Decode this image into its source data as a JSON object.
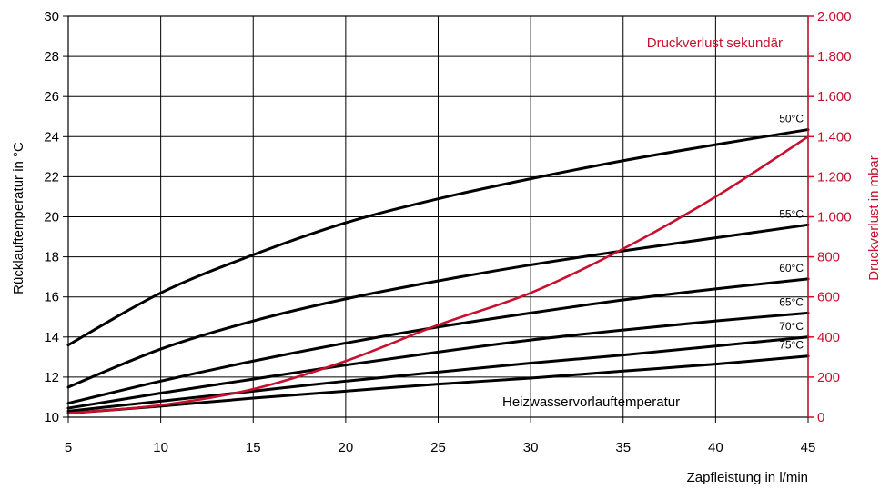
{
  "chart_data": {
    "type": "line",
    "xlabel": "Zapfleistung in l/min",
    "ylabel": "Rücklauftemperatur in °C",
    "y2label": "Druckverlust in mbar",
    "xlim": [
      5,
      45
    ],
    "ylim": [
      10,
      30
    ],
    "y2lim": [
      0,
      2000
    ],
    "grid": true,
    "x_ticks": [
      5,
      10,
      15,
      20,
      25,
      30,
      35,
      40,
      45
    ],
    "x_tick_labels": [
      "5",
      "10",
      "15",
      "20",
      "25",
      "30",
      "35",
      "40",
      "45"
    ],
    "y_ticks": [
      10,
      12,
      14,
      16,
      18,
      20,
      22,
      24,
      26,
      28,
      30
    ],
    "y_tick_labels": [
      "10",
      "12",
      "14",
      "16",
      "18",
      "20",
      "22",
      "24",
      "26",
      "28",
      "30"
    ],
    "y2_ticks": [
      0,
      200,
      400,
      600,
      800,
      1000,
      1200,
      1400,
      1600,
      1800,
      2000
    ],
    "y2_tick_labels": [
      "0",
      "200",
      "400",
      "600",
      "800",
      "1.000",
      "1.200",
      "1.400",
      "1.600",
      "1.800",
      "2.000"
    ],
    "x": [
      5,
      10,
      15,
      20,
      25,
      30,
      35,
      40,
      45
    ],
    "series": [
      {
        "name": "50°C",
        "axis": "left",
        "color": "#000000",
        "values": [
          13.6,
          16.2,
          18.1,
          19.7,
          20.9,
          21.9,
          22.8,
          23.6,
          24.35
        ]
      },
      {
        "name": "55°C",
        "axis": "left",
        "color": "#000000",
        "values": [
          11.5,
          13.4,
          14.8,
          15.9,
          16.8,
          17.6,
          18.3,
          18.95,
          19.6
        ]
      },
      {
        "name": "60°C",
        "axis": "left",
        "color": "#000000",
        "values": [
          10.7,
          11.8,
          12.8,
          13.7,
          14.5,
          15.2,
          15.85,
          16.4,
          16.9
        ]
      },
      {
        "name": "65°C",
        "axis": "left",
        "color": "#000000",
        "values": [
          10.45,
          11.2,
          11.9,
          12.6,
          13.25,
          13.85,
          14.35,
          14.8,
          15.2
        ]
      },
      {
        "name": "70°C",
        "axis": "left",
        "color": "#000000",
        "values": [
          10.3,
          10.8,
          11.3,
          11.8,
          12.25,
          12.7,
          13.1,
          13.55,
          14.0
        ]
      },
      {
        "name": "75°C",
        "axis": "left",
        "color": "#000000",
        "values": [
          10.2,
          10.55,
          10.95,
          11.3,
          11.65,
          11.95,
          12.3,
          12.65,
          13.05
        ]
      },
      {
        "name": "Druckverlust sekundär",
        "axis": "right",
        "color": "#c8102e",
        "values": [
          20,
          60,
          140,
          280,
          460,
          620,
          840,
          1100,
          1400
        ]
      }
    ],
    "annotations": {
      "red_curve": "Druckverlust sekundär",
      "curve_group": "Heizwasservorlauftemperatur"
    }
  }
}
